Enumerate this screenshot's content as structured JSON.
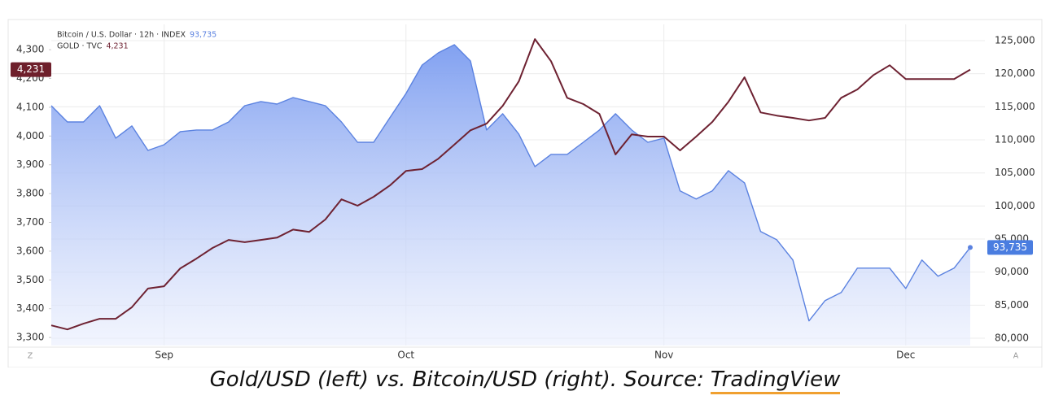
{
  "chart_data": {
    "type": "line",
    "categories": [
      null,
      null,
      null,
      null,
      null,
      null,
      null,
      "Sep",
      null,
      null,
      null,
      null,
      null,
      null,
      null,
      null,
      null,
      null,
      null,
      null,
      null,
      null,
      "Oct",
      null,
      null,
      null,
      null,
      null,
      null,
      null,
      null,
      null,
      null,
      null,
      null,
      null,
      null,
      null,
      "Nov",
      null,
      null,
      null,
      null,
      null,
      null,
      null,
      null,
      null,
      null,
      null,
      null,
      null,
      null,
      "Dec",
      null,
      null,
      null,
      null
    ],
    "series": [
      {
        "name": "Bitcoin / U.S. Dollar · 12h · INDEX",
        "last_value_label": "93,735",
        "color": "#5b82e0",
        "area": true,
        "axis": "y2",
        "values": [
          115170,
          112710,
          112710,
          115170,
          110260,
          112100,
          108410,
          109270,
          111240,
          111490,
          111490,
          112710,
          115170,
          115790,
          115410,
          116400,
          115790,
          115170,
          112710,
          109640,
          109640,
          113330,
          117010,
          121310,
          123160,
          124390,
          121930,
          111490,
          113950,
          110870,
          105960,
          107800,
          107800,
          109640,
          111490,
          113950,
          111490,
          109640,
          110260,
          102280,
          101050,
          102280,
          105340,
          103500,
          96130,
          94900,
          91830,
          82620,
          85700,
          86920,
          90600,
          90600,
          90600,
          87530,
          91830,
          89370,
          90600,
          93735
        ]
      },
      {
        "name": "GOLD · TVC",
        "last_value_label": "4,231",
        "color": "#6e2232",
        "area": false,
        "axis": "y",
        "values": [
          3342,
          3328,
          3348,
          3365,
          3365,
          3405,
          3470,
          3478,
          3540,
          3574,
          3611,
          3639,
          3631,
          3639,
          3647,
          3675,
          3667,
          3710,
          3780,
          3758,
          3789,
          3828,
          3879,
          3885,
          3921,
          3970,
          4020,
          4043,
          4105,
          4190,
          4337,
          4260,
          4133,
          4111,
          4077,
          3936,
          4006,
          3998,
          3998,
          3950,
          3998,
          4049,
          4119,
          4204,
          4082,
          4071,
          4063,
          4054,
          4063,
          4133,
          4162,
          4212,
          4246,
          4198,
          4198,
          4198,
          4198,
          4231
        ]
      }
    ],
    "ylim": [
      3272,
      4388
    ],
    "yticks": [
      {
        "value": 3300,
        "label": "3,300"
      },
      {
        "value": 3400,
        "label": "3,400"
      },
      {
        "value": 3500,
        "label": "3,500"
      },
      {
        "value": 3600,
        "label": "3,600"
      },
      {
        "value": 3700,
        "label": "3,700"
      },
      {
        "value": 3800,
        "label": "3,800"
      },
      {
        "value": 3900,
        "label": "3,900"
      },
      {
        "value": 4000,
        "label": "4,000"
      },
      {
        "value": 4100,
        "label": "4,100"
      },
      {
        "value": 4200,
        "label": "4,200"
      },
      {
        "value": 4300,
        "label": "4,300"
      }
    ],
    "y2lim": [
      78900,
      127460
    ],
    "y2ticks": [
      {
        "value": 80000,
        "label": "80,000"
      },
      {
        "value": 85000,
        "label": "85,000"
      },
      {
        "value": 90000,
        "label": "90,000"
      },
      {
        "value": 95000,
        "label": "95,000"
      },
      {
        "value": 100000,
        "label": "100,000"
      },
      {
        "value": 105000,
        "label": "105,000"
      },
      {
        "value": 110000,
        "label": "110,000"
      },
      {
        "value": 115000,
        "label": "115,000"
      },
      {
        "value": 120000,
        "label": "120,000"
      },
      {
        "value": 125000,
        "label": "125,000"
      }
    ],
    "grid": true,
    "scale_buttons": [
      "Z",
      "A"
    ]
  },
  "caption": {
    "text": "Gold/USD (left) vs. Bitcoin/USD (right). Source:",
    "link": "TradingView"
  }
}
